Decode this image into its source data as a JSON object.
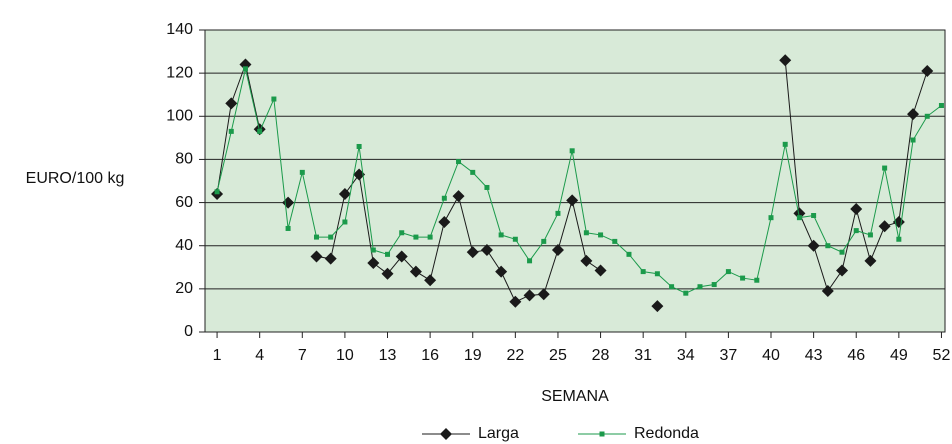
{
  "chart_data": {
    "type": "line",
    "xlabel": "SEMANA",
    "ylabel": "EURO/100 kg",
    "x": [
      1,
      2,
      3,
      4,
      5,
      6,
      7,
      8,
      9,
      10,
      11,
      12,
      13,
      14,
      15,
      16,
      17,
      18,
      19,
      20,
      21,
      22,
      23,
      24,
      25,
      26,
      27,
      28,
      29,
      30,
      31,
      32,
      33,
      34,
      35,
      36,
      37,
      38,
      39,
      40,
      41,
      42,
      43,
      44,
      45,
      46,
      47,
      48,
      49,
      50,
      51,
      52
    ],
    "series": [
      {
        "name": "Larga",
        "color": "#1a1a1a",
        "marker": "diamond",
        "values": [
          64,
          106,
          124,
          94,
          null,
          60,
          null,
          35,
          34,
          64,
          73,
          32,
          27,
          35,
          28,
          24,
          51,
          63,
          37,
          38,
          28,
          14,
          17,
          17.5,
          38,
          61,
          33,
          28.5,
          null,
          null,
          null,
          12,
          null,
          null,
          null,
          null,
          null,
          null,
          null,
          null,
          126,
          55,
          40,
          19,
          28.5,
          57,
          33,
          49,
          51,
          101,
          121,
          null
        ]
      },
      {
        "name": "Redonda",
        "color": "#1b9a4b",
        "marker": "square",
        "values": [
          65,
          93,
          122,
          93,
          108,
          48,
          74,
          44,
          44,
          51,
          86,
          38,
          36,
          46,
          44,
          44,
          62,
          79,
          74,
          67,
          45,
          43,
          33,
          42,
          55,
          84,
          46,
          45,
          42,
          36,
          28,
          27,
          21,
          18,
          21,
          22,
          28,
          25,
          24,
          53,
          87,
          53,
          54,
          40,
          37,
          47,
          45,
          76,
          43,
          89,
          100,
          105
        ]
      }
    ],
    "xlim": [
      0.15,
      52.25
    ],
    "xticks": [
      1,
      4,
      7,
      10,
      13,
      16,
      19,
      22,
      25,
      28,
      31,
      34,
      37,
      40,
      43,
      46,
      49,
      52
    ],
    "ylim": [
      0,
      140
    ],
    "yticks": [
      0,
      20,
      40,
      60,
      80,
      100,
      120,
      140
    ],
    "grid": true,
    "legend": "bottom",
    "plot_background": "#d8ead8"
  }
}
